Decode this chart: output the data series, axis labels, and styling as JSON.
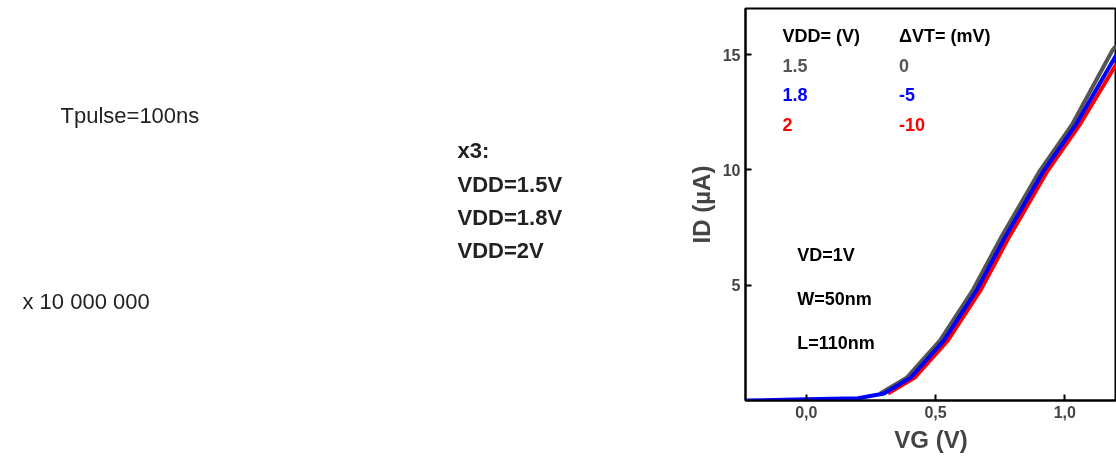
{
  "chart_data": {
    "type": "line",
    "xlabel": "VG (V)",
    "ylabel": "ID (µA)",
    "legend_title": "VDD= (V)",
    "legend": "top left",
    "xlim": [
      -0.235,
      1.2
    ],
    "ylim": [
      0,
      17
    ],
    "xticks": [
      {
        "value": 0.0,
        "label": "0,0"
      },
      {
        "value": 0.5,
        "label": "0,5"
      },
      {
        "value": 1.0,
        "label": "1,0"
      }
    ],
    "yticks": [
      5,
      10,
      15
    ],
    "series": [
      {
        "name": "1.5",
        "color": "#555555",
        "x": [
          0.286,
          0.39,
          0.517,
          0.645,
          0.75,
          0.9,
          1.03,
          1.185,
          1.2
        ],
        "values": [
          0.3,
          1.0,
          2.6,
          4.8,
          7.0,
          9.9,
          12.0,
          15.2,
          15.4
        ]
      },
      {
        "name": "1.8",
        "color": "#0000ff",
        "x": [
          -0.235,
          0.0,
          0.2,
          0.301,
          0.405,
          0.532,
          0.66,
          0.765,
          0.915,
          1.045,
          1.2
        ],
        "values": [
          0,
          0.05,
          0.1,
          0.3,
          1.0,
          2.6,
          4.8,
          7.0,
          9.9,
          12.0,
          15.0
        ]
      },
      {
        "name": "2",
        "color": "#ff0000",
        "x": [
          0.316,
          0.42,
          0.547,
          0.675,
          0.78,
          0.93,
          1.06,
          1.2
        ],
        "values": [
          0.3,
          1.0,
          2.6,
          4.8,
          7.0,
          9.9,
          12.0,
          14.6
        ]
      }
    ],
    "annotations": [
      "ΔVT= (mV)",
      "0",
      "-5",
      "-10",
      "VD=1V",
      "W=50nm",
      "L=110nm",
      "Tpulse=100ns",
      "x 10 000 000",
      "x3:",
      "VDD=1.5V",
      "VDD=1.8V",
      "VDD=2V"
    ]
  }
}
